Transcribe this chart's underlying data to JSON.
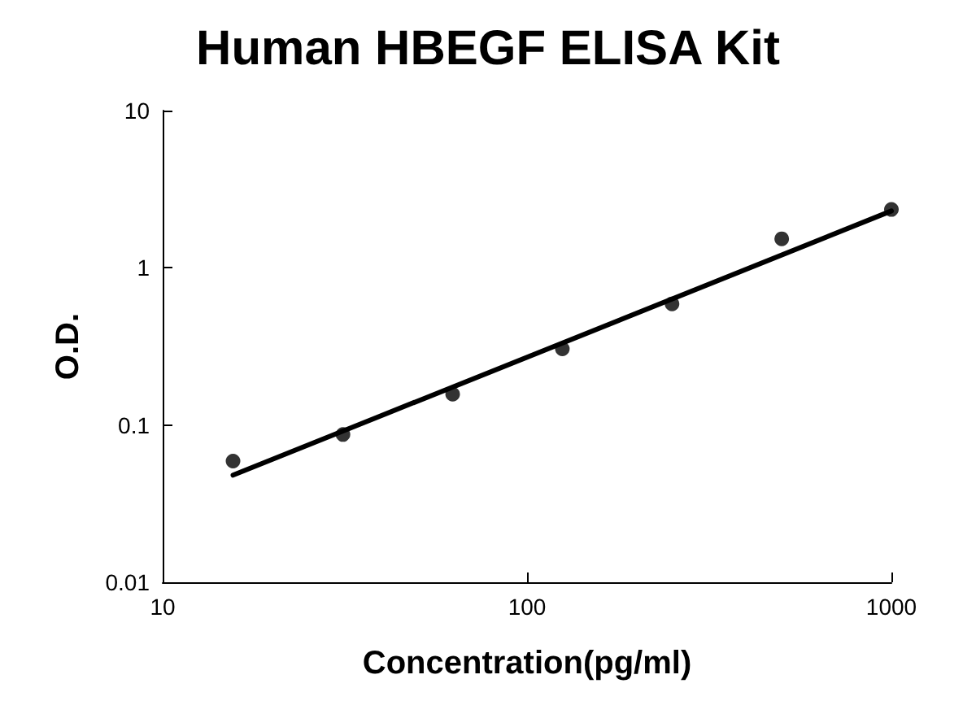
{
  "chart_data": {
    "type": "scatter",
    "title": "Human HBEGF ELISA Kit",
    "xlabel": "Concentration(pg/ml)",
    "ylabel": "O.D.",
    "log": "xy",
    "xlim": [
      10,
      1000
    ],
    "xticks": [
      10,
      100,
      1000
    ],
    "ylim": [
      0.01,
      10
    ],
    "yticks": [
      0.01,
      0.1,
      1,
      10
    ],
    "grid": false,
    "marker": "circle",
    "series": [
      {
        "color": "#000000",
        "x": [
          15.6,
          31.25,
          62.5,
          125,
          250,
          500,
          1000
        ],
        "values": [
          0.059,
          0.087,
          0.157,
          0.305,
          0.59,
          1.53,
          2.35
        ]
      },
      {
        "type": "line",
        "color": "#000000",
        "marker": "none",
        "line_style": "solid",
        "x": [
          15.6,
          1000
        ],
        "values": [
          0.048,
          2.3
        ]
      }
    ]
  }
}
